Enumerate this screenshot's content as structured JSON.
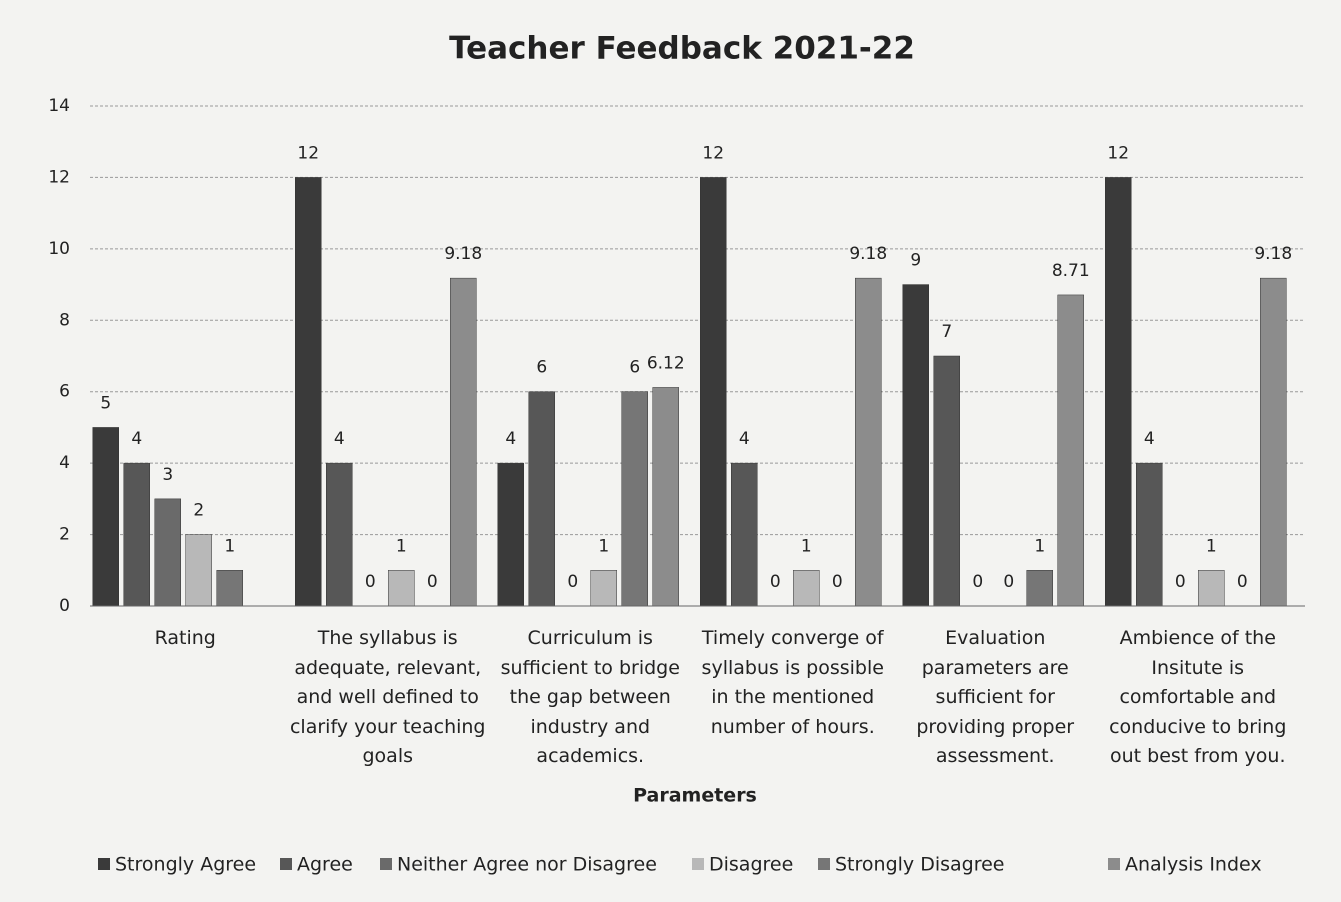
{
  "chart_data": {
    "type": "bar",
    "title": "Teacher Feedback 2021-22",
    "x_label": "Parameters",
    "categories": [
      "Rating",
      "The syllabus is adequate, relevant, and well defined to clarify your teaching goals",
      "Curriculum is sufficient to bridge the gap between industry and academics.",
      "Timely converge of syllabus is possible in the mentioned number of hours.",
      "Evaluation parameters are sufficient for providing proper assessment.",
      "Ambience of the Insitute is comfortable and conducive to bring out best from you."
    ],
    "series": [
      {
        "name": "Strongly Agree",
        "color": "#3a3a3a",
        "values": [
          5,
          12,
          4,
          12,
          9,
          12
        ]
      },
      {
        "name": "Agree",
        "color": "#575757",
        "values": [
          4,
          4,
          6,
          4,
          7,
          4
        ]
      },
      {
        "name": "Neither Agree nor Disagree",
        "color": "#6a6a6a",
        "values": [
          3,
          0,
          0,
          0,
          0,
          0
        ]
      },
      {
        "name": "Disagree",
        "color": "#b8b8b8",
        "values": [
          2,
          1,
          1,
          1,
          0,
          1
        ]
      },
      {
        "name": "Strongly Disagree",
        "color": "#767676",
        "values": [
          1,
          0,
          6,
          0,
          1,
          0
        ]
      },
      {
        "name": "Analysis Index",
        "color": "#8c8c8c",
        "values": [
          null,
          9.18,
          6.12,
          9.18,
          8.71,
          9.18
        ]
      }
    ],
    "ylim": [
      0,
      14
    ],
    "yticks": [
      0,
      2,
      4,
      6,
      8,
      10,
      12,
      14
    ],
    "grid": true,
    "legend": "bottom"
  }
}
